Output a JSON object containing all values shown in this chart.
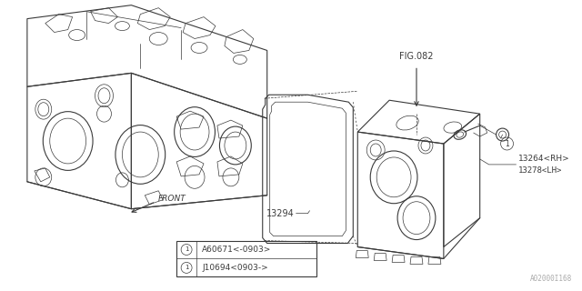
{
  "bg_color": "#ffffff",
  "lc": "#3a3a3a",
  "thin": 0.5,
  "medium": 0.8,
  "fig_ref": "FIG.082",
  "label_13294": "13294",
  "label_rh": "13264<RH>",
  "label_lh": "13278<LH>",
  "legend_row1": "A60671<-0903>",
  "legend_row2": "J10694<0903->",
  "watermark": "A02000I168",
  "front_text": "FRONT",
  "circle_sym": "①"
}
